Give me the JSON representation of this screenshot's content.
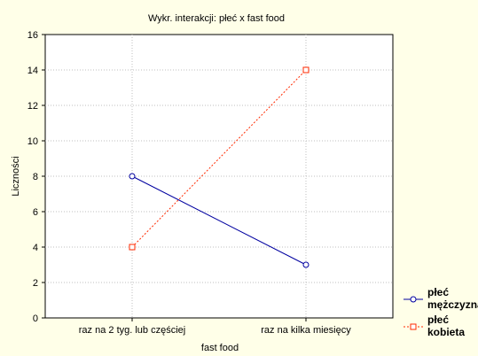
{
  "chart_data": {
    "type": "line",
    "title": "Wykr. interakcji: płeć x fast food",
    "xlabel": "fast food",
    "ylabel": "Liczności",
    "categories": [
      "raz na 2 tyg. lub częściej",
      "raz na kilka miesięcy"
    ],
    "ylim": [
      0,
      16
    ],
    "yticks": [
      "0",
      "2",
      "4",
      "6",
      "8",
      "10",
      "12",
      "14",
      "16"
    ],
    "grid": true,
    "legend_position": "bottom-right",
    "series": [
      {
        "name": "płeć mężczyzna",
        "legend_lines": [
          "płeć",
          "mężczyzna"
        ],
        "values": [
          8,
          3
        ],
        "color": "#0000A0",
        "marker": "circle",
        "line_style": "solid"
      },
      {
        "name": "płeć kobieta",
        "legend_lines": [
          "płeć",
          "kobieta"
        ],
        "values": [
          4,
          14
        ],
        "color": "#FF2A00",
        "marker": "square",
        "line_style": "dotted"
      }
    ]
  }
}
